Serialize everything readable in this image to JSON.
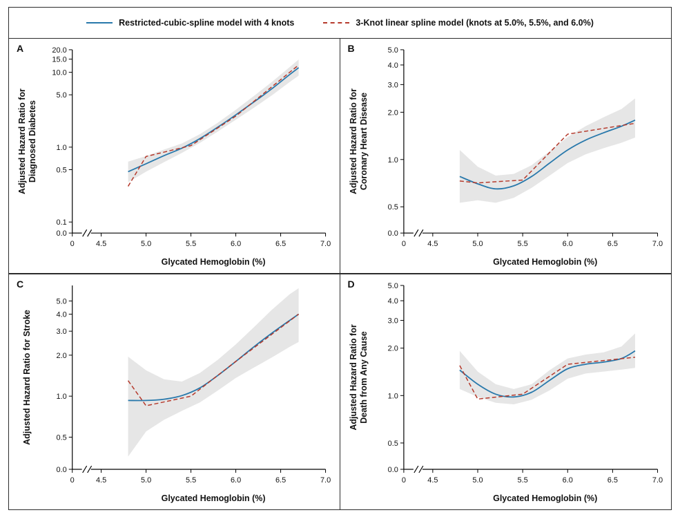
{
  "figure": {
    "legend": [
      {
        "label": "Restricted-cubic-spline model with 4 knots",
        "color": "#2878ab",
        "style": "solid"
      },
      {
        "label": "3-Knot linear spline model (knots at 5.0%, 5.5%, and 6.0%)",
        "color": "#b5392b",
        "style": "dashed"
      }
    ]
  },
  "chart_data": [
    {
      "type": "line",
      "panel": "A",
      "ylabel_lines": [
        "Adjusted Hazard Ratio for",
        "Diagnosed Diabetes"
      ],
      "xlabel": "Glycated Hemoglobin (%)",
      "x_origin_label": "0",
      "x_ticks": [
        4.5,
        5.0,
        5.5,
        6.0,
        6.5,
        7.0
      ],
      "xlim": [
        4.5,
        7.0
      ],
      "y_scale": "log",
      "y_zero_label": "0.0",
      "y_ticks": [
        0.1,
        0.5,
        1.0,
        5.0,
        10.0,
        15.0,
        20.0
      ],
      "ylim": [
        0.1,
        20.0
      ],
      "x_axis_break": true,
      "band": {
        "color": "#e6e6e6",
        "x": [
          4.8,
          5.0,
          5.2,
          5.4,
          5.6,
          5.8,
          6.0,
          6.2,
          6.4,
          6.6,
          6.7
        ],
        "lower": [
          0.34,
          0.47,
          0.63,
          0.84,
          1.14,
          1.62,
          2.32,
          3.35,
          4.9,
          7.4,
          9.0
        ],
        "upper": [
          0.64,
          0.76,
          0.93,
          1.12,
          1.49,
          2.12,
          3.15,
          4.8,
          7.4,
          11.7,
          14.8
        ]
      },
      "series": [
        {
          "name": "Restricted-cubic-spline model with 4 knots",
          "color": "#2878ab",
          "dash": false,
          "smooth": true,
          "width": 1.8,
          "x": [
            4.8,
            5.0,
            5.2,
            5.4,
            5.6,
            5.8,
            6.0,
            6.2,
            6.4,
            6.6,
            6.7
          ],
          "y": [
            0.47,
            0.6,
            0.77,
            0.97,
            1.3,
            1.85,
            2.7,
            4.0,
            6.0,
            9.3,
            11.5
          ]
        },
        {
          "name": "3-Knot linear spline model",
          "color": "#b5392b",
          "dash": true,
          "smooth": false,
          "width": 1.5,
          "x": [
            4.8,
            5.0,
            5.5,
            6.0,
            6.7
          ],
          "y": [
            0.3,
            0.75,
            1.05,
            2.6,
            12.5
          ]
        }
      ]
    },
    {
      "type": "line",
      "panel": "B",
      "ylabel_lines": [
        "Adjusted Hazard Ratio for",
        "Coronary Heart Disease"
      ],
      "xlabel": "Glycated Hemoglobin (%)",
      "x_origin_label": "0",
      "x_ticks": [
        4.5,
        5.0,
        5.5,
        6.0,
        6.5,
        7.0
      ],
      "xlim": [
        4.5,
        7.0
      ],
      "y_scale": "log",
      "y_zero_label": "0.0",
      "y_ticks": [
        0.5,
        1.0,
        2.0,
        3.0,
        4.0,
        5.0
      ],
      "ylim": [
        0.4,
        5.0
      ],
      "x_axis_break": true,
      "band": {
        "color": "#e6e6e6",
        "x": [
          4.8,
          5.0,
          5.2,
          5.4,
          5.6,
          5.8,
          6.0,
          6.2,
          6.4,
          6.6,
          6.75
        ],
        "lower": [
          0.53,
          0.55,
          0.53,
          0.57,
          0.66,
          0.79,
          0.95,
          1.08,
          1.18,
          1.28,
          1.38
        ],
        "upper": [
          1.15,
          0.9,
          0.79,
          0.81,
          0.92,
          1.13,
          1.39,
          1.63,
          1.86,
          2.1,
          2.45
        ]
      },
      "series": [
        {
          "name": "Restricted-cubic-spline model with 4 knots",
          "color": "#2878ab",
          "dash": false,
          "smooth": true,
          "width": 1.8,
          "x": [
            4.8,
            5.0,
            5.2,
            5.4,
            5.6,
            5.8,
            6.0,
            6.2,
            6.4,
            6.6,
            6.75
          ],
          "y": [
            0.78,
            0.7,
            0.65,
            0.68,
            0.78,
            0.95,
            1.15,
            1.33,
            1.48,
            1.63,
            1.78
          ]
        },
        {
          "name": "3-Knot linear spline model",
          "color": "#b5392b",
          "dash": true,
          "smooth": false,
          "width": 1.5,
          "x": [
            4.8,
            5.0,
            5.5,
            6.0,
            6.75
          ],
          "y": [
            0.73,
            0.71,
            0.74,
            1.45,
            1.7
          ]
        }
      ]
    },
    {
      "type": "line",
      "panel": "C",
      "ylabel_lines": [
        "Adjusted Hazard Ratio for Stroke"
      ],
      "xlabel": "Glycated Hemoglobin (%)",
      "x_origin_label": "0",
      "x_ticks": [
        4.5,
        5.0,
        5.5,
        6.0,
        6.5,
        7.0
      ],
      "xlim": [
        4.5,
        7.0
      ],
      "y_scale": "log",
      "y_zero_label": "0.0",
      "y_ticks": [
        0.5,
        1.0,
        2.0,
        3.0,
        4.0,
        5.0
      ],
      "ylim": [
        0.35,
        6.5
      ],
      "x_axis_break": true,
      "band": {
        "color": "#e6e6e6",
        "x": [
          4.8,
          5.0,
          5.2,
          5.4,
          5.6,
          5.8,
          6.0,
          6.2,
          6.4,
          6.6,
          6.7
        ],
        "lower": [
          0.36,
          0.55,
          0.67,
          0.78,
          0.9,
          1.1,
          1.36,
          1.62,
          1.92,
          2.3,
          2.5
        ],
        "upper": [
          1.95,
          1.55,
          1.33,
          1.28,
          1.48,
          1.85,
          2.4,
          3.2,
          4.3,
          5.6,
          6.2
        ]
      },
      "series": [
        {
          "name": "Restricted-cubic-spline model with 4 knots",
          "color": "#2878ab",
          "dash": false,
          "smooth": true,
          "width": 1.8,
          "x": [
            4.8,
            5.0,
            5.2,
            5.4,
            5.6,
            5.8,
            6.0,
            6.2,
            6.4,
            6.6,
            6.7
          ],
          "y": [
            0.93,
            0.93,
            0.95,
            1.01,
            1.15,
            1.42,
            1.8,
            2.3,
            2.9,
            3.6,
            4.0
          ]
        },
        {
          "name": "3-Knot linear spline model",
          "color": "#b5392b",
          "dash": true,
          "smooth": false,
          "width": 1.5,
          "x": [
            4.8,
            5.0,
            5.5,
            6.0,
            6.7
          ],
          "y": [
            1.3,
            0.85,
            1.0,
            1.8,
            4.0
          ]
        }
      ]
    },
    {
      "type": "line",
      "panel": "D",
      "ylabel_lines": [
        "Adjusted Hazard Ratio for",
        "Death from Any Cause"
      ],
      "xlabel": "Glycated Hemoglobin (%)",
      "x_origin_label": "0",
      "x_ticks": [
        4.5,
        5.0,
        5.5,
        6.0,
        6.5,
        7.0
      ],
      "xlim": [
        4.5,
        7.0
      ],
      "y_scale": "log",
      "y_zero_label": "0.0",
      "y_ticks": [
        0.5,
        1.0,
        2.0,
        3.0,
        4.0,
        5.0
      ],
      "ylim": [
        0.4,
        5.0
      ],
      "x_axis_break": true,
      "band": {
        "color": "#e6e6e6",
        "x": [
          4.8,
          5.0,
          5.2,
          5.4,
          5.6,
          5.8,
          6.0,
          6.2,
          6.4,
          6.6,
          6.75
        ],
        "lower": [
          1.1,
          0.98,
          0.9,
          0.88,
          0.94,
          1.08,
          1.28,
          1.38,
          1.42,
          1.46,
          1.5
        ],
        "upper": [
          1.92,
          1.42,
          1.18,
          1.1,
          1.18,
          1.45,
          1.72,
          1.82,
          1.88,
          2.05,
          2.48
        ]
      },
      "series": [
        {
          "name": "Restricted-cubic-spline model with 4 knots",
          "color": "#2878ab",
          "dash": false,
          "smooth": true,
          "width": 1.8,
          "x": [
            4.8,
            5.0,
            5.2,
            5.4,
            5.6,
            5.8,
            6.0,
            6.2,
            6.4,
            6.6,
            6.75
          ],
          "y": [
            1.45,
            1.18,
            1.02,
            0.98,
            1.05,
            1.25,
            1.48,
            1.58,
            1.63,
            1.72,
            1.92
          ]
        },
        {
          "name": "3-Knot linear spline model",
          "color": "#b5392b",
          "dash": true,
          "smooth": false,
          "width": 1.5,
          "x": [
            4.8,
            5.0,
            5.5,
            6.0,
            6.75
          ],
          "y": [
            1.55,
            0.95,
            1.02,
            1.58,
            1.75
          ]
        }
      ]
    }
  ]
}
